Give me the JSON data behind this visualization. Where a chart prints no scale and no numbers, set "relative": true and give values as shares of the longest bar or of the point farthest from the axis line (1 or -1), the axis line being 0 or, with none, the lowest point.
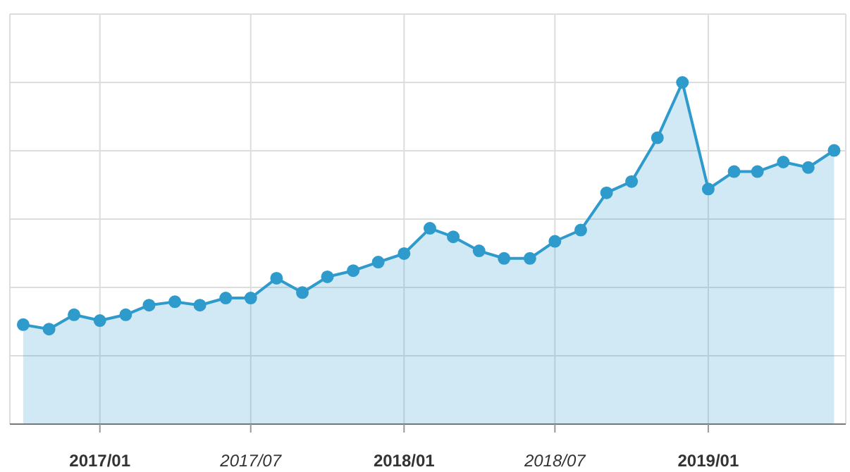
{
  "chart_data": {
    "type": "area",
    "relative": true,
    "grid": true,
    "marker": "circle",
    "line_style": "solid",
    "x": [
      "2016-10",
      "2016-11",
      "2016-12",
      "2017-01",
      "2017-02",
      "2017-03",
      "2017-04",
      "2017-05",
      "2017-06",
      "2017-07",
      "2017-08",
      "2017-09",
      "2017-10",
      "2017-11",
      "2017-12",
      "2018-01",
      "2018-02",
      "2018-03",
      "2018-04",
      "2018-05",
      "2018-06",
      "2018-07",
      "2018-08",
      "2018-09",
      "2018-10",
      "2018-11",
      "2018-12",
      "2019-01",
      "2019-02",
      "2019-03",
      "2019-04",
      "2019-05",
      "2019-06"
    ],
    "series": [
      {
        "color": "#2e9bcc",
        "values": [
          0.291,
          0.278,
          0.32,
          0.303,
          0.32,
          0.348,
          0.358,
          0.348,
          0.369,
          0.369,
          0.427,
          0.385,
          0.431,
          0.449,
          0.474,
          0.499,
          0.573,
          0.548,
          0.507,
          0.485,
          0.485,
          0.535,
          0.568,
          0.677,
          0.71,
          0.838,
          1,
          0.688,
          0.739,
          0.739,
          0.767,
          0.751,
          0.801
        ]
      }
    ],
    "xlim": [
      "2016-09-15",
      "2019-06-15"
    ],
    "xticks": [
      {
        "value": "2017-01",
        "label": "2017/01"
      },
      {
        "value": "2017-07",
        "label": "2017/07"
      },
      {
        "value": "2018-01",
        "label": "2018/01"
      },
      {
        "value": "2018-07",
        "label": "2018/07"
      },
      {
        "value": "2019-01",
        "label": "2019/01"
      }
    ]
  }
}
